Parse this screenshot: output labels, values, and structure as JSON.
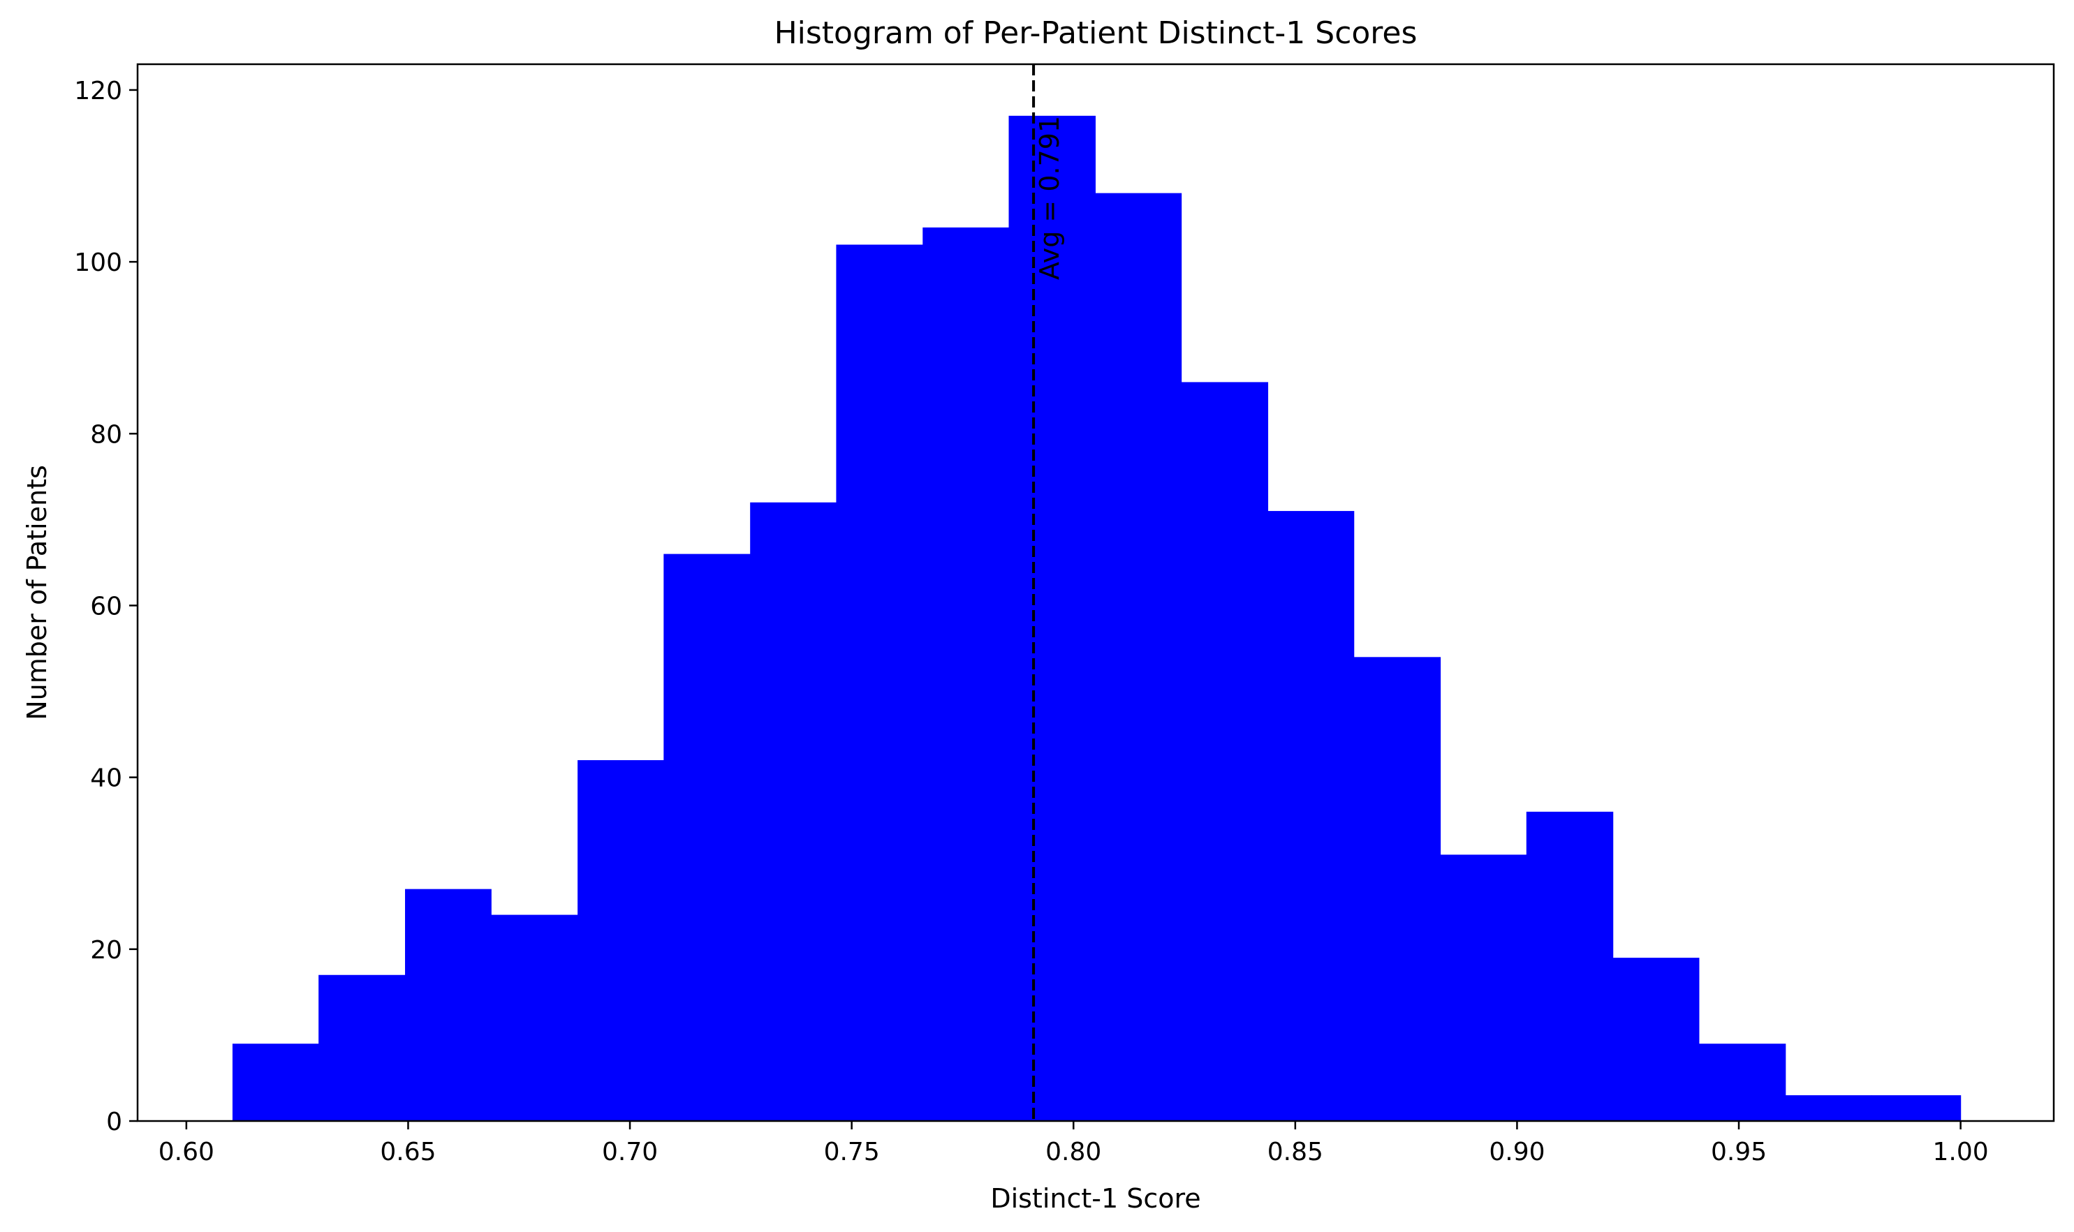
{
  "chart_data": {
    "type": "bar",
    "title": "Histogram of Per-Patient Distinct-1 Scores",
    "xlabel": "Distinct-1 Score",
    "ylabel": "Number of Patients",
    "xlim": [
      0.589,
      1.021
    ],
    "ylim": [
      0,
      123
    ],
    "bin_edges": [
      0.6104,
      0.6298,
      0.6493,
      0.6687,
      0.6882,
      0.7076,
      0.7271,
      0.7465,
      0.766,
      0.7854,
      0.8049,
      0.8243,
      0.8438,
      0.8632,
      0.8827,
      0.9021,
      0.9216,
      0.941,
      0.9605,
      0.9799,
      1.0
    ],
    "counts": [
      9,
      17,
      27,
      24,
      42,
      66,
      72,
      102,
      104,
      117,
      108,
      86,
      71,
      54,
      31,
      36,
      19,
      9,
      3,
      3
    ],
    "bar_color": "#0000ff",
    "x_ticks": [
      "0.60",
      "0.65",
      "0.70",
      "0.75",
      "0.80",
      "0.85",
      "0.90",
      "0.95",
      "1.00"
    ],
    "x_tick_values": [
      0.6,
      0.65,
      0.7,
      0.75,
      0.8,
      0.85,
      0.9,
      0.95,
      1.0
    ],
    "y_ticks": [
      "0",
      "20",
      "40",
      "60",
      "80",
      "100",
      "120"
    ],
    "y_tick_values": [
      0,
      20,
      40,
      60,
      80,
      100,
      120
    ],
    "mean_line": {
      "value": 0.791,
      "label": "Avg = 0.791",
      "style": "dashed",
      "color": "#000000"
    },
    "grid": false,
    "legend": "none"
  }
}
